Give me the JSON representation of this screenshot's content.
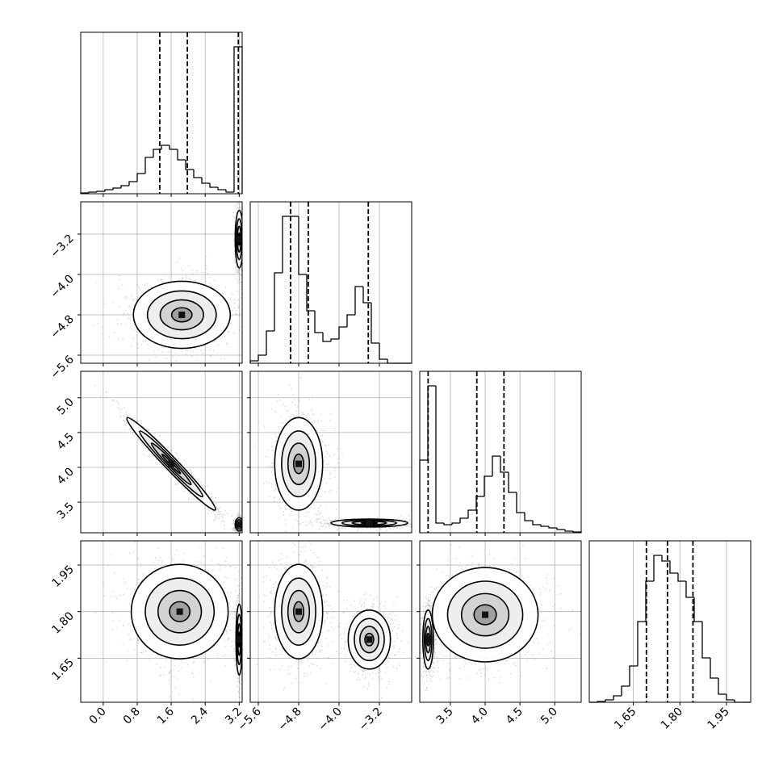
{
  "chart_data": {
    "type": "corner",
    "grid": true,
    "color": "#000000",
    "hist_ylim": [
      0,
      200
    ],
    "params": [
      {
        "lim": [
          -0.53,
          3.27
        ],
        "ticks": [
          {
            "value": 0,
            "label": "0.0"
          },
          0.8,
          1.6,
          2.4,
          3.2
        ],
        "hist": {
          "bins": [
            -0.53,
            -0.34,
            -0.15,
            0.04,
            0.23,
            0.42,
            0.61,
            0.8,
            0.99,
            1.18,
            1.37,
            1.56,
            1.75,
            1.94,
            2.13,
            2.32,
            2.51,
            2.7,
            2.89,
            3.08,
            3.27
          ],
          "counts": [
            1,
            2,
            3,
            5,
            7,
            10,
            15,
            25,
            45,
            55,
            60,
            55,
            42,
            30,
            20,
            13,
            8,
            5,
            2,
            182
          ]
        },
        "quantiles": [
          1.33,
          1.98,
          3.18
        ]
      },
      {
        "lim": [
          -5.76,
          -2.56
        ],
        "ticks": [
          {
            "value": -5.6,
            "label": "−5.6"
          },
          {
            "value": -4.8,
            "label": "−4.8"
          },
          {
            "value": -4.0,
            "label": "−4.0"
          },
          {
            "value": -3.2,
            "label": "−3.2"
          }
        ],
        "hist": {
          "bins": [
            -5.76,
            -5.6,
            -5.44,
            -5.28,
            -5.12,
            -4.96,
            -4.8,
            -4.64,
            -4.48,
            -4.32,
            -4.16,
            -4.0,
            -3.84,
            -3.68,
            -3.52,
            -3.36,
            -3.2,
            -3.04,
            -2.88,
            -2.72,
            -2.56
          ],
          "counts": [
            3,
            10,
            40,
            112,
            182,
            182,
            110,
            65,
            38,
            27,
            30,
            45,
            60,
            95,
            75,
            25,
            5,
            0,
            0,
            0
          ]
        },
        "quantiles": [
          -4.96,
          -4.61,
          -3.42
        ]
      },
      {
        "lim": [
          3.06,
          5.38
        ],
        "ticks": [
          3.5,
          {
            "value": 4.0,
            "label": "4.0"
          },
          4.5,
          {
            "value": 5.0,
            "label": "5.0"
          }
        ],
        "hist": {
          "bins": [
            3.06,
            3.176,
            3.292,
            3.408,
            3.524,
            3.64,
            3.756,
            3.872,
            3.988,
            4.104,
            4.22,
            4.336,
            4.452,
            4.568,
            4.684,
            4.8,
            4.916,
            5.032,
            5.148,
            5.264,
            5.38
          ],
          "counts": [
            90,
            182,
            12,
            10,
            12,
            18,
            28,
            45,
            70,
            95,
            75,
            50,
            25,
            15,
            10,
            8,
            6,
            4,
            2,
            1
          ]
        },
        "quantiles": [
          3.18,
          3.88,
          4.27
        ]
      },
      {
        "lim": [
          1.508,
          2.028
        ],
        "ticks": [
          1.65,
          {
            "value": 1.8,
            "label": "1.80"
          },
          1.95
        ],
        "hist": {
          "bins": [
            1.508,
            1.534,
            1.56,
            1.586,
            1.612,
            1.638,
            1.664,
            1.69,
            1.716,
            1.742,
            1.768,
            1.794,
            1.82,
            1.846,
            1.872,
            1.898,
            1.924,
            1.95,
            1.976,
            2.002,
            2.028
          ],
          "counts": [
            0,
            1,
            3,
            8,
            20,
            45,
            100,
            150,
            182,
            175,
            160,
            150,
            130,
            100,
            55,
            30,
            10,
            3,
            0,
            0
          ]
        },
        "quantiles": [
          1.692,
          1.76,
          1.842
        ]
      }
    ],
    "pairs": [
      [
        {
          "modes": [
            {
              "x": 1.85,
              "y": -4.8,
              "sx": 0.6,
              "sy": 0.35
            },
            {
              "x": 3.2,
              "y": -3.3,
              "sx": 0.05,
              "sy": 0.3
            }
          ]
        }
      ],
      [
        {
          "modes": [
            {
              "x": 1.6,
              "y": 4.05,
              "sx": 0.55,
              "sy": 0.35,
              "rho": -0.98
            },
            {
              "x": 3.2,
              "y": 3.18,
              "sx": 0.05,
              "sy": 0.05
            }
          ]
        },
        {
          "modes": [
            {
              "x": -4.8,
              "y": 4.05,
              "sx": 0.25,
              "sy": 0.35
            },
            {
              "x": -3.4,
              "y": 3.2,
              "sx": 0.4,
              "sy": 0.03
            }
          ]
        }
      ],
      [
        {
          "modes": [
            {
              "x": 1.8,
              "y": 1.8,
              "sx": 0.6,
              "sy": 0.08
            },
            {
              "x": 3.2,
              "y": 1.71,
              "sx": 0.04,
              "sy": 0.06
            }
          ]
        },
        {
          "modes": [
            {
              "x": -4.8,
              "y": 1.8,
              "sx": 0.25,
              "sy": 0.08
            },
            {
              "x": -3.4,
              "y": 1.71,
              "sx": 0.22,
              "sy": 0.05
            }
          ]
        },
        {
          "modes": [
            {
              "x": 4.0,
              "y": 1.79,
              "sx": 0.4,
              "sy": 0.08
            },
            {
              "x": 3.18,
              "y": 1.71,
              "sx": 0.04,
              "sy": 0.05
            }
          ]
        }
      ]
    ]
  }
}
